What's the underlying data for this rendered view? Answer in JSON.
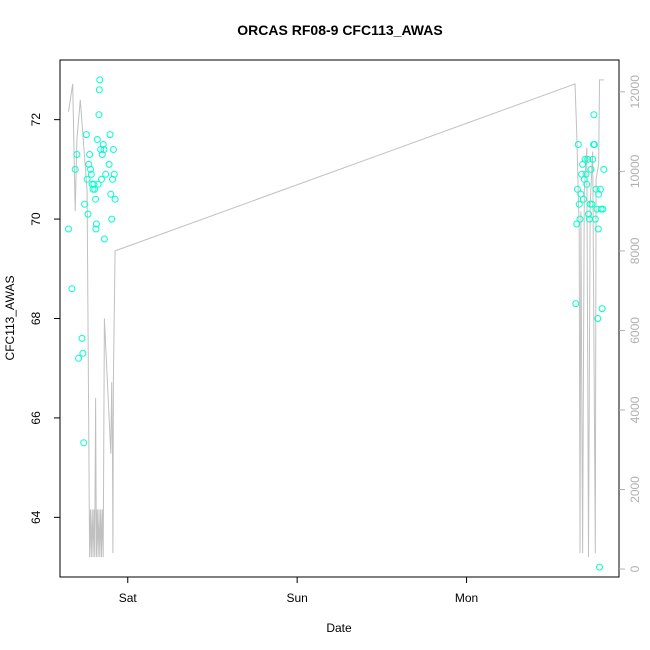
{
  "chart_data": {
    "type": "scatter",
    "title": "ORCAS RF08-9 CFC113_AWAS",
    "xlabel": "Date",
    "ylabel": "CFC113_AWAS",
    "x_unit": "days",
    "x_ticks": [
      {
        "label": "Sat",
        "x": 1.0
      },
      {
        "label": "Sun",
        "x": 2.0
      },
      {
        "label": "Mon",
        "x": 3.0
      }
    ],
    "xlim": [
      0.6,
      3.9
    ],
    "ylim": [
      62.8,
      73.2
    ],
    "y_ticks": [
      64,
      66,
      68,
      70,
      72
    ],
    "y2lim": [
      -200,
      12800
    ],
    "y2_ticks": [
      0,
      2000,
      4000,
      6000,
      8000,
      10000,
      12000
    ],
    "colors": {
      "points": "#00ffcc",
      "line": "#c0c0c0",
      "axis": "#000000",
      "axis2": "#b0b0b0"
    },
    "series": [
      {
        "values": [
          [
            0.65,
            69.8
          ],
          [
            0.67,
            68.6
          ],
          [
            0.69,
            71.0
          ],
          [
            0.7,
            71.3
          ],
          [
            0.71,
            67.2
          ],
          [
            0.73,
            67.6
          ],
          [
            0.735,
            67.3
          ],
          [
            0.74,
            65.5
          ],
          [
            0.745,
            70.3
          ],
          [
            0.755,
            71.7
          ],
          [
            0.76,
            70.8
          ],
          [
            0.765,
            70.1
          ],
          [
            0.77,
            71.1
          ],
          [
            0.775,
            71.3
          ],
          [
            0.78,
            71.0
          ],
          [
            0.785,
            70.9
          ],
          [
            0.79,
            70.7
          ],
          [
            0.795,
            70.6
          ],
          [
            0.8,
            70.7
          ],
          [
            0.805,
            70.6
          ],
          [
            0.81,
            70.4
          ],
          [
            0.812,
            69.8
          ],
          [
            0.815,
            69.9
          ],
          [
            0.82,
            71.6
          ],
          [
            0.825,
            70.7
          ],
          [
            0.83,
            72.1
          ],
          [
            0.832,
            72.6
          ],
          [
            0.835,
            72.8
          ],
          [
            0.84,
            71.4
          ],
          [
            0.845,
            70.8
          ],
          [
            0.85,
            71.3
          ],
          [
            0.855,
            71.5
          ],
          [
            0.86,
            71.4
          ],
          [
            0.862,
            69.6
          ],
          [
            0.87,
            70.9
          ],
          [
            0.89,
            71.1
          ],
          [
            0.895,
            71.7
          ],
          [
            0.9,
            70.5
          ],
          [
            0.905,
            70.0
          ],
          [
            0.91,
            70.8
          ],
          [
            0.915,
            71.4
          ],
          [
            0.92,
            70.9
          ],
          [
            0.925,
            70.4
          ],
          [
            3.645,
            68.3
          ],
          [
            3.65,
            69.9
          ],
          [
            3.655,
            70.6
          ],
          [
            3.66,
            71.5
          ],
          [
            3.665,
            70.3
          ],
          [
            3.67,
            70.0
          ],
          [
            3.675,
            70.5
          ],
          [
            3.68,
            70.9
          ],
          [
            3.685,
            71.1
          ],
          [
            3.69,
            70.4
          ],
          [
            3.695,
            70.8
          ],
          [
            3.7,
            71.2
          ],
          [
            3.705,
            70.9
          ],
          [
            3.71,
            70.7
          ],
          [
            3.715,
            71.2
          ],
          [
            3.72,
            70.1
          ],
          [
            3.725,
            70.0
          ],
          [
            3.73,
            70.3
          ],
          [
            3.735,
            71.0
          ],
          [
            3.74,
            70.3
          ],
          [
            3.745,
            71.2
          ],
          [
            3.75,
            71.5
          ],
          [
            3.752,
            72.1
          ],
          [
            3.755,
            71.5
          ],
          [
            3.76,
            70.0
          ],
          [
            3.765,
            70.6
          ],
          [
            3.77,
            70.2
          ],
          [
            3.775,
            68.0
          ],
          [
            3.778,
            69.8
          ],
          [
            3.78,
            70.5
          ],
          [
            3.785,
            63.0
          ],
          [
            3.79,
            70.6
          ],
          [
            3.795,
            70.2
          ],
          [
            3.8,
            68.2
          ],
          [
            3.805,
            70.2
          ],
          [
            3.81,
            71.0
          ]
        ]
      },
      {
        "axis": "right",
        "values": [
          [
            0.65,
            11500
          ],
          [
            0.675,
            12200
          ],
          [
            0.69,
            9000
          ],
          [
            0.7,
            10800
          ],
          [
            0.72,
            11800
          ],
          [
            0.76,
            9500
          ],
          [
            0.775,
            300
          ],
          [
            0.78,
            1500
          ],
          [
            0.785,
            300
          ],
          [
            0.79,
            1500
          ],
          [
            0.795,
            300
          ],
          [
            0.8,
            1500
          ],
          [
            0.805,
            300
          ],
          [
            0.81,
            4300
          ],
          [
            0.815,
            300
          ],
          [
            0.82,
            1500
          ],
          [
            0.825,
            300
          ],
          [
            0.83,
            1500
          ],
          [
            0.835,
            300
          ],
          [
            0.84,
            1500
          ],
          [
            0.845,
            300
          ],
          [
            0.85,
            1500
          ],
          [
            0.855,
            300
          ],
          [
            0.862,
            6300
          ],
          [
            0.9,
            2900
          ],
          [
            0.905,
            4700
          ],
          [
            0.91,
            2800
          ],
          [
            0.912,
            400
          ],
          [
            0.915,
            4800
          ],
          [
            0.925,
            8000
          ],
          [
            3.64,
            12200
          ],
          [
            3.65,
            11000
          ],
          [
            3.665,
            8500
          ],
          [
            3.67,
            400
          ],
          [
            3.675,
            9000
          ],
          [
            3.685,
            400
          ],
          [
            3.695,
            9500
          ],
          [
            3.71,
            10600
          ],
          [
            3.72,
            300
          ],
          [
            3.73,
            9200
          ],
          [
            3.745,
            10500
          ],
          [
            3.76,
            400
          ],
          [
            3.765,
            9800
          ],
          [
            3.78,
            10200
          ],
          [
            3.785,
            12300
          ],
          [
            3.81,
            12300
          ]
        ]
      }
    ]
  }
}
